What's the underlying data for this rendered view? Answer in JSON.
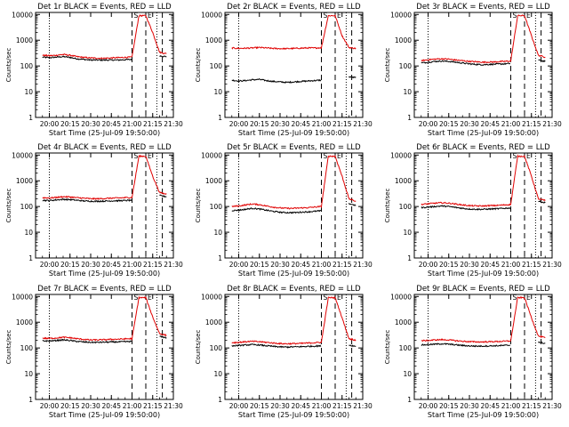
{
  "page": {
    "background": "#ffffff",
    "colors": {
      "events": "#000000",
      "lld": "#e00000",
      "axis": "#000000"
    }
  },
  "panel_common": {
    "ylabel": "Counts/sec",
    "xlabel": "Start Time (25-Jul-09 19:50:00)",
    "x_tick_labels": [
      "20:00",
      "20:15",
      "20:30",
      "20:45",
      "21:00",
      "21:15",
      "21:30"
    ],
    "y_tick_labels": [
      "1",
      "10",
      "100",
      "1000",
      "10000"
    ],
    "saa_labels": [
      "S",
      "E"
    ]
  },
  "chart_data": [
    {
      "type": "line",
      "title": "Det 1r BLACK = Events, RED = LLD",
      "x": [
        "19:55",
        "20:00",
        "20:05",
        "20:10",
        "20:15",
        "20:20",
        "20:25",
        "20:30",
        "20:35",
        "20:40",
        "20:45",
        "20:50",
        "20:55",
        "21:00",
        "21:05",
        "21:10",
        "21:15",
        "21:20",
        "21:25"
      ],
      "series": [
        {
          "name": "Events",
          "values": [
            220,
            210,
            220,
            230,
            215,
            190,
            180,
            170,
            170,
            170,
            170,
            170,
            175,
            180,
            null,
            null,
            null,
            250,
            230
          ]
        },
        {
          "name": "LLD",
          "values": [
            260,
            250,
            260,
            280,
            260,
            230,
            215,
            205,
            200,
            200,
            205,
            210,
            215,
            220,
            9000,
            9000,
            2000,
            340,
            300
          ]
        }
      ],
      "xlim": [
        "19:50",
        "21:30"
      ],
      "ylim": [
        1,
        12000
      ],
      "yscale": "log"
    },
    {
      "type": "line",
      "title": "Det 2r BLACK = Events, RED = LLD",
      "x": [
        "19:55",
        "20:00",
        "20:05",
        "20:10",
        "20:15",
        "20:20",
        "20:25",
        "20:30",
        "20:35",
        "20:40",
        "20:45",
        "20:50",
        "20:55",
        "21:00",
        "21:05",
        "21:10",
        "21:15",
        "21:20",
        "21:25"
      ],
      "series": [
        {
          "name": "Events",
          "values": [
            28,
            26,
            27,
            29,
            30,
            27,
            25,
            24,
            23,
            24,
            25,
            26,
            27,
            28,
            null,
            null,
            null,
            38,
            35
          ]
        },
        {
          "name": "LLD",
          "values": [
            500,
            480,
            490,
            500,
            520,
            500,
            480,
            470,
            470,
            480,
            490,
            500,
            500,
            510,
            9000,
            9000,
            1500,
            520,
            480
          ]
        }
      ],
      "xlim": [
        "19:50",
        "21:30"
      ],
      "ylim": [
        1,
        12000
      ],
      "yscale": "log"
    },
    {
      "type": "line",
      "title": "Det 3r BLACK = Events, RED = LLD",
      "x": [
        "19:55",
        "20:00",
        "20:05",
        "20:10",
        "20:15",
        "20:20",
        "20:25",
        "20:30",
        "20:35",
        "20:40",
        "20:45",
        "20:50",
        "20:55",
        "21:00",
        "21:05",
        "21:10",
        "21:15",
        "21:20",
        "21:25"
      ],
      "series": [
        {
          "name": "Events",
          "values": [
            130,
            140,
            150,
            155,
            150,
            140,
            130,
            120,
            115,
            112,
            115,
            118,
            120,
            125,
            null,
            null,
            null,
            170,
            150
          ]
        },
        {
          "name": "LLD",
          "values": [
            160,
            175,
            185,
            190,
            185,
            170,
            160,
            150,
            145,
            140,
            142,
            145,
            150,
            155,
            9000,
            9000,
            1500,
            260,
            220
          ]
        }
      ],
      "xlim": [
        "19:50",
        "21:30"
      ],
      "ylim": [
        1,
        12000
      ],
      "yscale": "log"
    },
    {
      "type": "line",
      "title": "Det 4r BLACK = Events, RED = LLD",
      "x": [
        "19:55",
        "20:00",
        "20:05",
        "20:10",
        "20:15",
        "20:20",
        "20:25",
        "20:30",
        "20:35",
        "20:40",
        "20:45",
        "20:50",
        "20:55",
        "21:00",
        "21:05",
        "21:10",
        "21:15",
        "21:20",
        "21:25"
      ],
      "series": [
        {
          "name": "Events",
          "values": [
            175,
            170,
            180,
            190,
            185,
            175,
            165,
            160,
            160,
            162,
            165,
            168,
            170,
            175,
            null,
            null,
            null,
            270,
            240
          ]
        },
        {
          "name": "LLD",
          "values": [
            220,
            215,
            225,
            240,
            235,
            220,
            210,
            200,
            200,
            205,
            210,
            215,
            220,
            225,
            9000,
            9000,
            1500,
            350,
            300
          ]
        }
      ],
      "xlim": [
        "19:50",
        "21:30"
      ],
      "ylim": [
        1,
        12000
      ],
      "yscale": "log"
    },
    {
      "type": "line",
      "title": "Det 5r BLACK = Events, RED = LLD",
      "x": [
        "19:55",
        "20:00",
        "20:05",
        "20:10",
        "20:15",
        "20:20",
        "20:25",
        "20:30",
        "20:35",
        "20:40",
        "20:45",
        "20:50",
        "20:55",
        "21:00",
        "21:05",
        "21:10",
        "21:15",
        "21:20",
        "21:25"
      ],
      "series": [
        {
          "name": "Events",
          "values": [
            70,
            72,
            78,
            85,
            80,
            72,
            65,
            60,
            58,
            58,
            60,
            62,
            65,
            68,
            null,
            null,
            null,
            130,
            110
          ]
        },
        {
          "name": "LLD",
          "values": [
            100,
            105,
            115,
            125,
            118,
            105,
            95,
            88,
            85,
            85,
            88,
            90,
            95,
            100,
            9000,
            9000,
            1500,
            200,
            160
          ]
        }
      ],
      "xlim": [
        "19:50",
        "21:30"
      ],
      "ylim": [
        1,
        12000
      ],
      "yscale": "log"
    },
    {
      "type": "line",
      "title": "Det 6r BLACK = Events, RED = LLD",
      "x": [
        "19:55",
        "20:00",
        "20:05",
        "20:10",
        "20:15",
        "20:20",
        "20:25",
        "20:30",
        "20:35",
        "20:40",
        "20:45",
        "20:50",
        "20:55",
        "21:00",
        "21:05",
        "21:10",
        "21:15",
        "21:20",
        "21:25"
      ],
      "series": [
        {
          "name": "Events",
          "values": [
            90,
            95,
            100,
            105,
            100,
            92,
            85,
            80,
            78,
            78,
            80,
            82,
            85,
            88,
            null,
            null,
            null,
            160,
            140
          ]
        },
        {
          "name": "LLD",
          "values": [
            120,
            128,
            135,
            140,
            135,
            125,
            115,
            108,
            105,
            105,
            108,
            110,
            115,
            120,
            9000,
            9000,
            1500,
            200,
            170
          ]
        }
      ],
      "xlim": [
        "19:50",
        "21:30"
      ],
      "ylim": [
        1,
        12000
      ],
      "yscale": "log"
    },
    {
      "type": "line",
      "title": "Det 7r BLACK = Events, RED = LLD",
      "x": [
        "19:55",
        "20:00",
        "20:05",
        "20:10",
        "20:15",
        "20:20",
        "20:25",
        "20:30",
        "20:35",
        "20:40",
        "20:45",
        "20:50",
        "20:55",
        "21:00",
        "21:05",
        "21:10",
        "21:15",
        "21:20",
        "21:25"
      ],
      "series": [
        {
          "name": "Events",
          "values": [
            190,
            185,
            195,
            205,
            195,
            180,
            170,
            165,
            165,
            168,
            170,
            172,
            175,
            180,
            null,
            null,
            null,
            280,
            250
          ]
        },
        {
          "name": "LLD",
          "values": [
            240,
            235,
            245,
            260,
            250,
            230,
            215,
            205,
            205,
            210,
            215,
            220,
            225,
            230,
            9000,
            9000,
            1600,
            360,
            310
          ]
        }
      ],
      "xlim": [
        "19:50",
        "21:30"
      ],
      "ylim": [
        1,
        12000
      ],
      "yscale": "log"
    },
    {
      "type": "line",
      "title": "Det 8r BLACK = Events, RED = LLD",
      "x": [
        "19:55",
        "20:00",
        "20:05",
        "20:10",
        "20:15",
        "20:20",
        "20:25",
        "20:30",
        "20:35",
        "20:40",
        "20:45",
        "20:50",
        "20:55",
        "21:00",
        "21:05",
        "21:10",
        "21:15",
        "21:20",
        "21:25"
      ],
      "series": [
        {
          "name": "Events",
          "values": [
            120,
            125,
            130,
            135,
            130,
            122,
            115,
            110,
            108,
            110,
            112,
            115,
            118,
            120,
            null,
            null,
            null,
            130,
            115
          ]
        },
        {
          "name": "LLD",
          "values": [
            160,
            165,
            175,
            180,
            175,
            165,
            155,
            148,
            145,
            148,
            150,
            155,
            160,
            165,
            9000,
            9000,
            1500,
            230,
            200
          ]
        }
      ],
      "xlim": [
        "19:50",
        "21:30"
      ],
      "ylim": [
        1,
        12000
      ],
      "yscale": "log"
    },
    {
      "type": "line",
      "title": "Det 9r BLACK = Events, RED = LLD",
      "x": [
        "19:55",
        "20:00",
        "20:05",
        "20:10",
        "20:15",
        "20:20",
        "20:25",
        "20:30",
        "20:35",
        "20:40",
        "20:45",
        "20:50",
        "20:55",
        "21:00",
        "21:05",
        "21:10",
        "21:15",
        "21:20",
        "21:25"
      ],
      "series": [
        {
          "name": "Events",
          "values": [
            130,
            135,
            140,
            145,
            140,
            132,
            125,
            120,
            118,
            118,
            120,
            122,
            125,
            128,
            null,
            null,
            null,
            170,
            150
          ]
        },
        {
          "name": "LLD",
          "values": [
            190,
            195,
            205,
            210,
            205,
            192,
            182,
            175,
            172,
            172,
            175,
            178,
            182,
            188,
            9000,
            9000,
            1500,
            290,
            250
          ]
        }
      ],
      "xlim": [
        "19:50",
        "21:30"
      ],
      "ylim": [
        1,
        12000
      ],
      "yscale": "log"
    }
  ]
}
